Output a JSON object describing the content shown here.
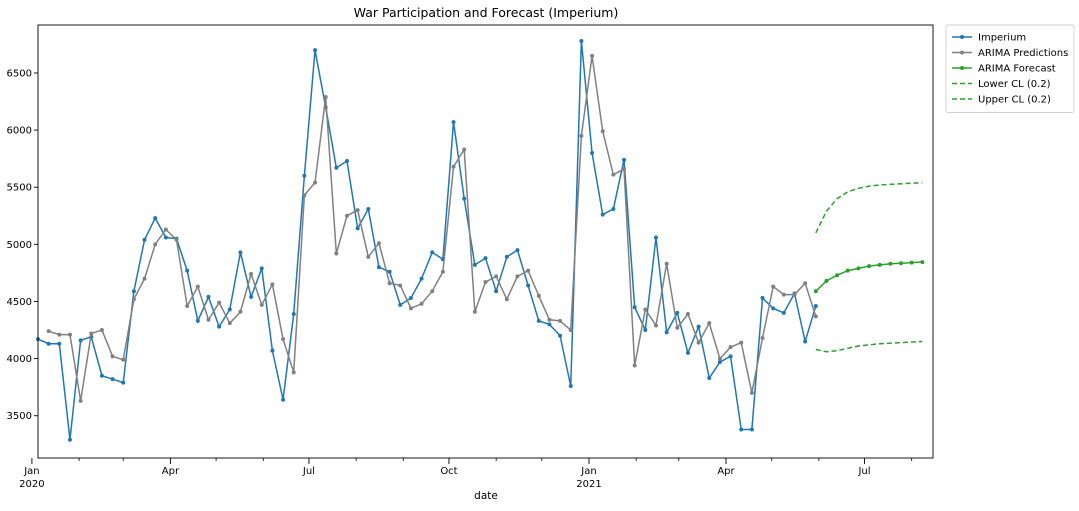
{
  "chart_data": {
    "type": "line",
    "title": "War Participation and Forecast (Imperium)",
    "xlabel": "date",
    "ylabel": "",
    "grid": false,
    "legend_placement": "outside-top-right",
    "xlim": [
      "2020-01-05",
      "2021-08-15"
    ],
    "ylim": [
      3130,
      6920
    ],
    "y_ticks": [
      3500,
      4000,
      4500,
      5000,
      5500,
      6000,
      6500
    ],
    "x_ticks": [
      {
        "date": "2020-01-01",
        "label": "Jan",
        "sublabel": "2020"
      },
      {
        "date": "2020-04-01",
        "label": "Apr",
        "sublabel": ""
      },
      {
        "date": "2020-07-01",
        "label": "Jul",
        "sublabel": ""
      },
      {
        "date": "2020-10-01",
        "label": "Oct",
        "sublabel": ""
      },
      {
        "date": "2021-01-01",
        "label": "Jan",
        "sublabel": "2021"
      },
      {
        "date": "2021-04-01",
        "label": "Apr",
        "sublabel": ""
      },
      {
        "date": "2021-07-01",
        "label": "Jul",
        "sublabel": ""
      }
    ],
    "series": [
      {
        "name": "Imperium",
        "color": "#1f77b4",
        "style": "solid-dots",
        "start": "2020-01-05",
        "step_days": 7,
        "values": [
          4170,
          4130,
          4130,
          3290,
          4160,
          4190,
          3850,
          3820,
          3790,
          4590,
          5040,
          5230,
          5060,
          5050,
          4770,
          4330,
          4540,
          4280,
          4430,
          4930,
          4540,
          4790,
          4070,
          3640,
          4390,
          5600,
          6700,
          6200,
          5670,
          5730,
          5140,
          5310,
          4800,
          4760,
          4470,
          4530,
          4700,
          4930,
          4870,
          6070,
          5400,
          4820,
          4880,
          4590,
          4890,
          4950,
          4640,
          4330,
          4300,
          4200,
          3760,
          6780,
          5800,
          5260,
          5310,
          5740,
          4450,
          4250,
          5060,
          4230,
          4400,
          4050,
          4280,
          3830,
          3970,
          4020,
          3380,
          3380,
          4530,
          4440,
          4400,
          4570,
          4150,
          4460
        ]
      },
      {
        "name": "ARIMA Predictions",
        "color": "#808080",
        "style": "solid-dots",
        "start": "2020-01-12",
        "step_days": 7,
        "values": [
          4240,
          4210,
          4210,
          3630,
          4220,
          4250,
          4020,
          3990,
          4520,
          4700,
          5000,
          5130,
          5040,
          4460,
          4630,
          4340,
          4490,
          4310,
          4410,
          4740,
          4470,
          4650,
          4170,
          3880,
          5430,
          5540,
          6290,
          4920,
          5250,
          5300,
          4890,
          5010,
          4660,
          4640,
          4440,
          4480,
          4590,
          4760,
          5680,
          5830,
          4410,
          4670,
          4720,
          4520,
          4720,
          4770,
          4550,
          4340,
          4330,
          4250,
          5950,
          6650,
          5990,
          5610,
          5660,
          3940,
          4430,
          4290,
          4830,
          4270,
          4390,
          4140,
          4310,
          4000,
          4100,
          4140,
          3700,
          4180,
          4630,
          4560,
          4560,
          4660,
          4370
        ]
      },
      {
        "name": "ARIMA Forecast",
        "color": "#2ca02c",
        "style": "solid-dots",
        "start": "2021-05-30",
        "step_days": 7,
        "values": [
          4590,
          4680,
          4730,
          4770,
          4790,
          4810,
          4820,
          4830,
          4835,
          4840,
          4845
        ]
      },
      {
        "name": "Lower CL (0.2)",
        "color": "#2ca02c",
        "style": "dashed",
        "start": "2021-05-30",
        "step_days": 7,
        "values": [
          4080,
          4060,
          4070,
          4090,
          4110,
          4120,
          4130,
          4135,
          4140,
          4145,
          4150
        ]
      },
      {
        "name": "Upper CL (0.2)",
        "color": "#2ca02c",
        "style": "dashed",
        "start": "2021-05-30",
        "step_days": 7,
        "values": [
          5100,
          5290,
          5400,
          5460,
          5490,
          5510,
          5520,
          5525,
          5530,
          5535,
          5540
        ]
      }
    ]
  }
}
